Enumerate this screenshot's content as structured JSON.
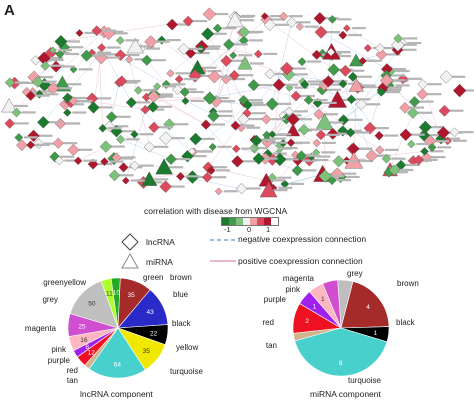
{
  "panel_letter": "A",
  "colorbar": {
    "title": "correlation with disease from WGCNA",
    "min_label": "-1",
    "mid_label": "0",
    "max_label": "1",
    "colors": [
      "#1b7a2e",
      "#3f9a4a",
      "#7dc27b",
      "#f2f2f2",
      "#f2a0a8",
      "#dc4b5d",
      "#b0172d"
    ]
  },
  "legend": {
    "lncrna_label": "lncRNA",
    "mirna_label": "miRNA",
    "neg_label": "negative coexpression connection",
    "pos_label": "positive coexpression connection",
    "neg_color": "#6fa8dc",
    "pos_color": "#e8a0b0"
  },
  "chart_data": [
    {
      "type": "pie",
      "title": "lncRNA component",
      "slices": [
        {
          "name": "green",
          "value": 10,
          "label": "10",
          "color": "#22aa22"
        },
        {
          "name": "brown",
          "value": 35,
          "label": "35",
          "color": "#a52a2a"
        },
        {
          "name": "blue",
          "value": 43,
          "label": "43",
          "color": "#2a2ac8"
        },
        {
          "name": "black",
          "value": 22,
          "label": "22",
          "color": "#000000"
        },
        {
          "name": "yellow",
          "value": 35,
          "label": "35",
          "color": "#f0e800"
        },
        {
          "name": "turquoise",
          "value": 64,
          "label": "64",
          "color": "#48d1cc"
        },
        {
          "name": "tan",
          "value": 6,
          "label": "",
          "color": "#d2b48c"
        },
        {
          "name": "red",
          "value": 12,
          "label": "12",
          "color": "#ee1122"
        },
        {
          "name": "purple",
          "value": 8,
          "label": "8",
          "color": "#a020f0"
        },
        {
          "name": "pink",
          "value": 16,
          "label": "16",
          "color": "#ffb6c1"
        },
        {
          "name": "magenta",
          "value": 25,
          "label": "25",
          "color": "#d04fd0"
        },
        {
          "name": "grey",
          "value": 50,
          "label": "50",
          "color": "#c0c0c0"
        },
        {
          "name": "greenyellow",
          "value": 11,
          "label": "11",
          "color": "#adff2f"
        }
      ]
    },
    {
      "type": "pie",
      "title": "miRNA component",
      "slices": [
        {
          "name": "grey",
          "value": 1,
          "label": "",
          "color": "#bebebe"
        },
        {
          "name": "brown",
          "value": 4,
          "label": "4",
          "color": "#a52a2a"
        },
        {
          "name": "black",
          "value": 1,
          "label": "1",
          "color": "#000000"
        },
        {
          "name": "turquoise",
          "value": 8,
          "label": "8",
          "color": "#48d1cc"
        },
        {
          "name": "tan",
          "value": 0.5,
          "label": "",
          "color": "#d2b48c"
        },
        {
          "name": "red",
          "value": 2,
          "label": "2",
          "color": "#ee1122"
        },
        {
          "name": "purple",
          "value": 1,
          "label": "1",
          "color": "#a020f0"
        },
        {
          "name": "pink",
          "value": 1,
          "label": "1",
          "color": "#ffb6c1"
        },
        {
          "name": "magenta",
          "value": 1,
          "label": "",
          "color": "#d04fd0"
        }
      ]
    }
  ]
}
